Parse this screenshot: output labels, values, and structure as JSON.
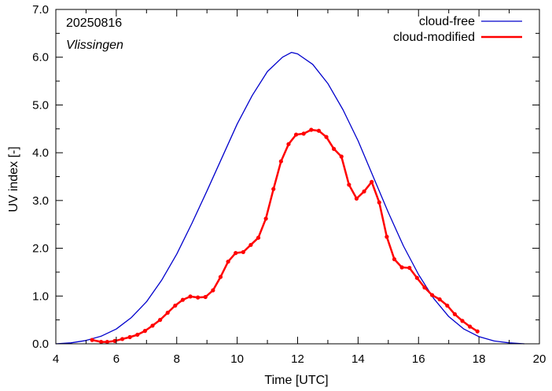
{
  "chart_data": {
    "type": "line",
    "xlabel": "Time  [UTC]",
    "ylabel": "UV index  [-]",
    "xlim": [
      4,
      20
    ],
    "ylim": [
      0,
      7
    ],
    "xticks": [
      4,
      6,
      8,
      10,
      12,
      14,
      16,
      18,
      20
    ],
    "yticks": [
      0,
      1,
      2,
      3,
      4,
      5,
      6,
      7
    ],
    "ytick_labels": [
      "0.0",
      "1.0",
      "2.0",
      "3.0",
      "4.0",
      "5.0",
      "6.0",
      "7.0"
    ],
    "grid": false,
    "legend": "top-right",
    "annotations": {
      "date": "20250816",
      "station": "Vlissingen"
    },
    "series": [
      {
        "name": "cloud-free",
        "color": "#0000cc",
        "markers": false,
        "x": [
          4.0,
          4.5,
          5.0,
          5.5,
          6.0,
          6.5,
          7.0,
          7.5,
          8.0,
          8.5,
          9.0,
          9.5,
          10.0,
          10.5,
          11.0,
          11.5,
          11.8,
          12.0,
          12.5,
          13.0,
          13.5,
          14.0,
          14.5,
          15.0,
          15.5,
          16.0,
          16.5,
          17.0,
          17.5,
          18.0,
          18.5,
          19.0,
          19.5
        ],
        "y": [
          0.0,
          0.02,
          0.07,
          0.16,
          0.31,
          0.55,
          0.88,
          1.33,
          1.88,
          2.52,
          3.2,
          3.9,
          4.6,
          5.2,
          5.7,
          6.0,
          6.1,
          6.07,
          5.85,
          5.45,
          4.9,
          4.25,
          3.5,
          2.75,
          2.05,
          1.45,
          0.95,
          0.57,
          0.31,
          0.15,
          0.06,
          0.02,
          0.0
        ]
      },
      {
        "name": "cloud-modified",
        "color": "#ff0000",
        "markers": true,
        "x": [
          5.2,
          5.5,
          5.7,
          5.95,
          6.2,
          6.45,
          6.7,
          6.95,
          7.2,
          7.45,
          7.7,
          7.95,
          8.2,
          8.45,
          8.7,
          8.95,
          9.2,
          9.45,
          9.7,
          9.95,
          10.2,
          10.45,
          10.7,
          10.95,
          11.2,
          11.45,
          11.7,
          11.95,
          12.2,
          12.45,
          12.7,
          12.95,
          13.2,
          13.45,
          13.7,
          13.95,
          14.2,
          14.45,
          14.7,
          14.95,
          15.2,
          15.45,
          15.7,
          15.95,
          16.2,
          16.45,
          16.7,
          16.95,
          17.2,
          17.45,
          17.7,
          17.95
        ],
        "y": [
          0.08,
          0.04,
          0.04,
          0.06,
          0.1,
          0.14,
          0.19,
          0.27,
          0.38,
          0.5,
          0.65,
          0.8,
          0.92,
          0.99,
          0.97,
          0.98,
          1.12,
          1.4,
          1.72,
          1.9,
          1.92,
          2.07,
          2.22,
          2.62,
          3.24,
          3.82,
          4.18,
          4.38,
          4.4,
          4.48,
          4.46,
          4.33,
          4.08,
          3.92,
          3.33,
          3.04,
          3.19,
          3.39,
          2.96,
          2.24,
          1.77,
          1.6,
          1.59,
          1.38,
          1.18,
          1.02,
          0.93,
          0.8,
          0.62,
          0.48,
          0.36,
          0.26
        ]
      }
    ]
  }
}
